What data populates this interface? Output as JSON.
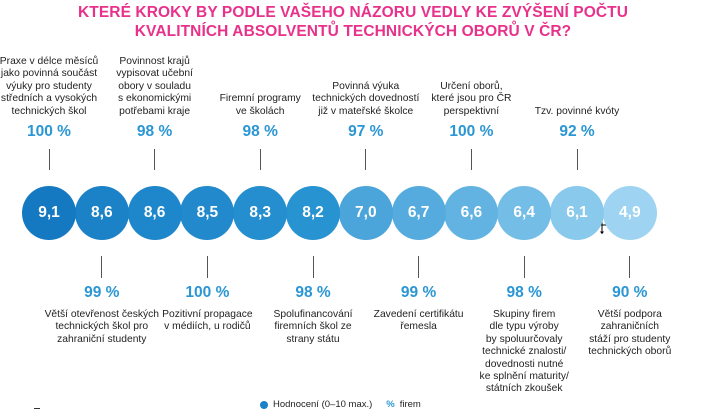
{
  "title": {
    "line1": "KTERÉ KROKY BY PODLE VAŠEHO NÁZORU VEDLY KE ZVÝŠENÍ POČTU",
    "line2": "KVALITNÍCH ABSOLVENTŮ TECHNICKÝCH OBORŮ V ČR?"
  },
  "chart_data": {
    "type": "bubble-row",
    "title": "KTERÉ KROKY BY PODLE VAŠEHO NÁZORU VEDLY KE ZVÝŠENÍ POČTU KVALITNÍCH ABSOLVENTŮ TECHNICKÝCH OBORŮ V ČR?",
    "series": [
      {
        "name": "Hodnocení (0–10 max.)",
        "unit": "score"
      },
      {
        "name": "% firem",
        "unit": "percent"
      }
    ],
    "items": [
      {
        "position": "top",
        "label": [
          "Praxe v délce měsíců",
          "jako povinná součást",
          "výuky pro studenty",
          "středních a vysokých",
          "technických škol"
        ],
        "rating": "9,1",
        "percent": "100 %"
      },
      {
        "position": "bottom",
        "label": [
          "Větší otevřenost českých",
          "technických škol pro",
          "zahraniční studenty"
        ],
        "rating": "8,6",
        "percent": "99 %"
      },
      {
        "position": "top",
        "label": [
          "Povinnost krajů",
          "vypisovat učební",
          "obory v souladu",
          "s ekonomickými",
          "potřebami kraje"
        ],
        "rating": "8,6",
        "percent": "98 %"
      },
      {
        "position": "bottom",
        "label": [
          "Pozitivní propagace",
          "v médiích, u rodičů"
        ],
        "rating": "8,5",
        "percent": "100 %"
      },
      {
        "position": "top",
        "label": [
          "Firemní programy",
          "ve školách"
        ],
        "rating": "8,3",
        "percent": "98 %"
      },
      {
        "position": "bottom",
        "label": [
          "Spolufinancování",
          "firemních škol ze",
          "strany státu"
        ],
        "rating": "8,2",
        "percent": "98 %"
      },
      {
        "position": "top",
        "label": [
          "Povinná výuka",
          "technických dovedností",
          "již v mateřské školce"
        ],
        "rating": "7,0",
        "percent": "97 %"
      },
      {
        "position": "bottom",
        "label": [
          "Zavedení certifikátu",
          "řemesla"
        ],
        "rating": "6,7",
        "percent": "99 %"
      },
      {
        "position": "top",
        "label": [
          "Určení oborů,",
          "které jsou pro ČR",
          "perspektivní"
        ],
        "rating": "6,6",
        "percent": "100 %"
      },
      {
        "position": "bottom",
        "label": [
          "Skupiny firem",
          "dle typu výroby",
          "by spoluurčovaly",
          "technické znalosti/",
          "dovednosti nutné",
          "ke splnění maturity/",
          "státních zkoušek"
        ],
        "rating": "6,4",
        "percent": "98 %"
      },
      {
        "position": "top",
        "label": [
          "Tzv. povinné kvóty"
        ],
        "rating": "6,1",
        "percent": "92 %"
      },
      {
        "position": "bottom",
        "label": [
          "Větší podpora",
          "zahraničních",
          "stáží pro studenty",
          "technických oborů"
        ],
        "rating": "4,9",
        "percent": "90 %"
      }
    ],
    "colors": [
      "#1579c2",
      "#1b82c8",
      "#1e86ca",
      "#2189cc",
      "#248ece",
      "#2893d1",
      "#4ba4da",
      "#55abdd",
      "#62b3e1",
      "#74bde6",
      "#88c9ec",
      "#9ed4f1"
    ]
  },
  "legend": {
    "rating_label": "Hodnocení (0–10 max.)",
    "percent_symbol": "%",
    "percent_label": "firem"
  }
}
